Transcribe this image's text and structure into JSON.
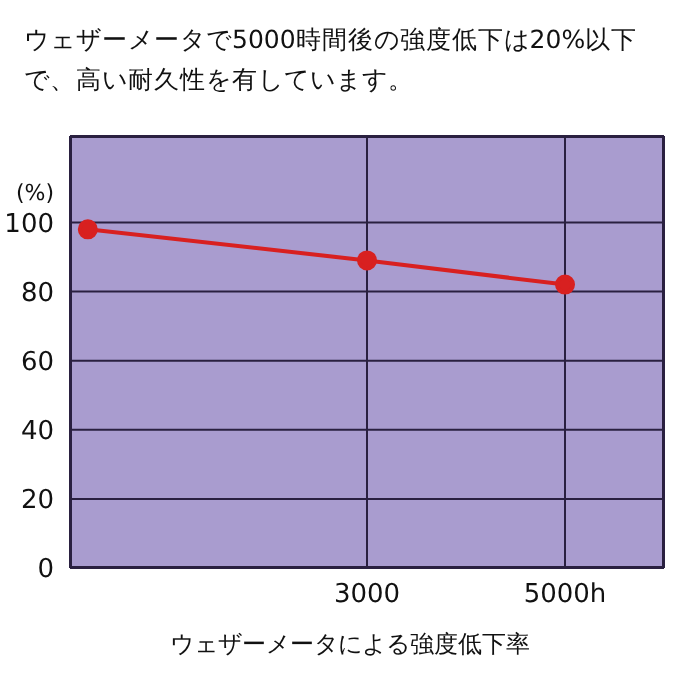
{
  "chart_data": {
    "type": "line",
    "title": "ウェザーメータで5000時間後の強度低下は20%以下で、高い耐久性を有しています。",
    "xlabel": "ウェザーメータによる強度低下率",
    "ylabel": "(%)",
    "x": [
      180,
      3000,
      5000
    ],
    "series": [
      {
        "color": "#d82020",
        "values": [
          98,
          89,
          82
        ]
      }
    ],
    "xlim": [
      0,
      6000
    ],
    "xticks": [
      3000,
      {
        "value": 5000,
        "label": "5000h"
      }
    ],
    "ylim": [
      0,
      125
    ],
    "yticks": [
      0,
      20,
      40,
      60,
      80,
      100
    ],
    "grid": true,
    "marker": "circle",
    "line_style": "solid"
  }
}
